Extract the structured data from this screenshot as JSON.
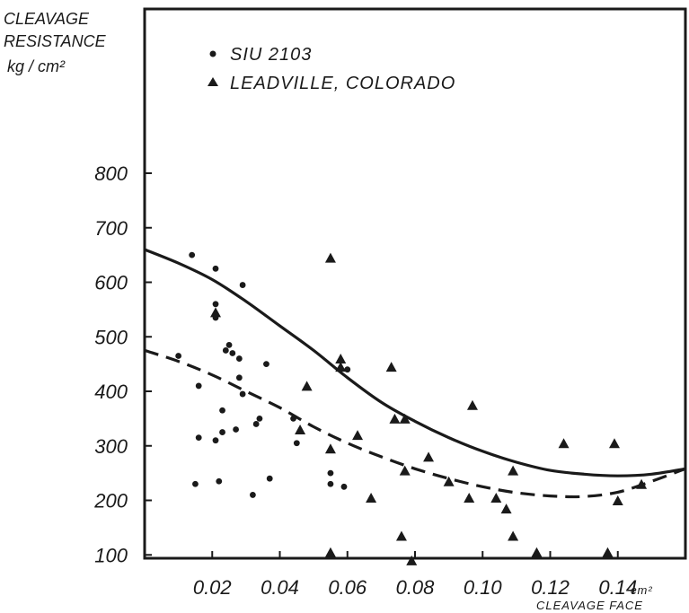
{
  "chart_data": {
    "type": "scatter",
    "title": "",
    "ylabel_lines": [
      "CLEAVAGE",
      "RESISTANCE",
      "kg / cm²"
    ],
    "xlabel": "CLEAVAGE FACE",
    "x_unit": "cm²",
    "xlim": [
      0.0,
      0.16
    ],
    "ylim": [
      0,
      800
    ],
    "x_ticks": [
      0.02,
      0.04,
      0.06,
      0.08,
      0.1,
      0.12,
      0.14
    ],
    "x_tick_labels": [
      "0.02",
      "0.04",
      "0.06",
      "0.08",
      "0.10",
      "0.12",
      "0.14"
    ],
    "y_ticks": [
      100,
      200,
      300,
      400,
      500,
      600,
      700,
      800
    ],
    "y_tick_labels": [
      "100",
      "200",
      "300",
      "400",
      "500",
      "600",
      "700",
      "800"
    ],
    "grid": false,
    "legend_position": "top-left",
    "series": [
      {
        "name": "SIU 2103",
        "marker": "circle",
        "points": [
          [
            0.01,
            465
          ],
          [
            0.014,
            650
          ],
          [
            0.015,
            230
          ],
          [
            0.016,
            410
          ],
          [
            0.016,
            315
          ],
          [
            0.021,
            625
          ],
          [
            0.021,
            560
          ],
          [
            0.021,
            535
          ],
          [
            0.021,
            310
          ],
          [
            0.022,
            235
          ],
          [
            0.023,
            365
          ],
          [
            0.023,
            325
          ],
          [
            0.024,
            475
          ],
          [
            0.025,
            485
          ],
          [
            0.026,
            470
          ],
          [
            0.027,
            330
          ],
          [
            0.028,
            460
          ],
          [
            0.028,
            425
          ],
          [
            0.029,
            395
          ],
          [
            0.029,
            595
          ],
          [
            0.032,
            210
          ],
          [
            0.033,
            340
          ],
          [
            0.034,
            350
          ],
          [
            0.036,
            450
          ],
          [
            0.037,
            240
          ],
          [
            0.044,
            350
          ],
          [
            0.045,
            305
          ],
          [
            0.055,
            250
          ],
          [
            0.055,
            230
          ],
          [
            0.059,
            225
          ],
          [
            0.06,
            440
          ]
        ]
      },
      {
        "name": "LEADVILLE, COLORADO",
        "marker": "triangle",
        "points": [
          [
            0.021,
            545
          ],
          [
            0.046,
            330
          ],
          [
            0.048,
            410
          ],
          [
            0.055,
            645
          ],
          [
            0.055,
            295
          ],
          [
            0.055,
            105
          ],
          [
            0.058,
            460
          ],
          [
            0.058,
            445
          ],
          [
            0.063,
            320
          ],
          [
            0.067,
            205
          ],
          [
            0.073,
            445
          ],
          [
            0.074,
            350
          ],
          [
            0.076,
            135
          ],
          [
            0.077,
            350
          ],
          [
            0.077,
            255
          ],
          [
            0.079,
            90
          ],
          [
            0.084,
            280
          ],
          [
            0.09,
            235
          ],
          [
            0.096,
            205
          ],
          [
            0.097,
            375
          ],
          [
            0.104,
            205
          ],
          [
            0.107,
            185
          ],
          [
            0.109,
            255
          ],
          [
            0.109,
            135
          ],
          [
            0.116,
            105
          ],
          [
            0.124,
            305
          ],
          [
            0.137,
            105
          ],
          [
            0.139,
            305
          ],
          [
            0.14,
            200
          ],
          [
            0.147,
            230
          ]
        ]
      }
    ],
    "curves": [
      {
        "style": "solid",
        "points": [
          [
            0.0,
            660
          ],
          [
            0.01,
            635
          ],
          [
            0.02,
            605
          ],
          [
            0.03,
            565
          ],
          [
            0.04,
            520
          ],
          [
            0.05,
            475
          ],
          [
            0.06,
            425
          ],
          [
            0.07,
            380
          ],
          [
            0.08,
            345
          ],
          [
            0.09,
            315
          ],
          [
            0.1,
            290
          ],
          [
            0.11,
            270
          ],
          [
            0.12,
            255
          ],
          [
            0.13,
            248
          ],
          [
            0.14,
            245
          ],
          [
            0.15,
            248
          ],
          [
            0.16,
            258
          ]
        ]
      },
      {
        "style": "dashed",
        "points": [
          [
            0.0,
            475
          ],
          [
            0.01,
            455
          ],
          [
            0.02,
            430
          ],
          [
            0.03,
            400
          ],
          [
            0.04,
            370
          ],
          [
            0.05,
            335
          ],
          [
            0.06,
            305
          ],
          [
            0.07,
            280
          ],
          [
            0.08,
            258
          ],
          [
            0.09,
            240
          ],
          [
            0.1,
            225
          ],
          [
            0.11,
            214
          ],
          [
            0.12,
            208
          ],
          [
            0.13,
            207
          ],
          [
            0.14,
            215
          ],
          [
            0.15,
            235
          ],
          [
            0.16,
            258
          ]
        ]
      }
    ]
  }
}
